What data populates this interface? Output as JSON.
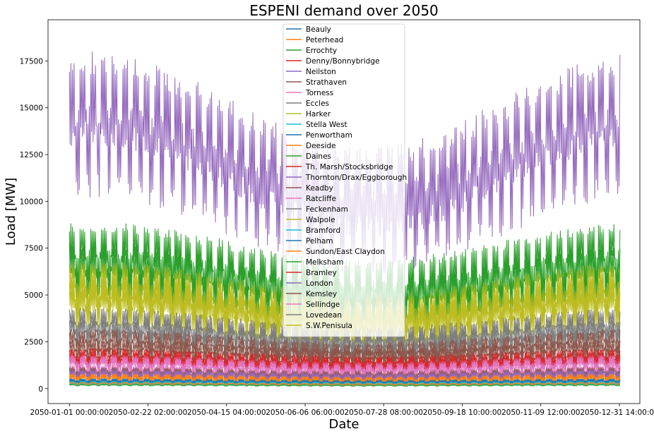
{
  "chart_data": {
    "type": "line",
    "title": "ESPENI demand over 2050",
    "xlabel": "Date",
    "ylabel": "Load [MW]",
    "x_ticks": [
      "2050-01-01 00:00:00",
      "2050-02-22 02:00:00",
      "2050-04-15 04:00:00",
      "2050-06-06 06:00:00",
      "2050-07-28 08:00:00",
      "2050-09-18 10:00:00",
      "2050-11-09 12:00:00",
      "2050-12-31 14:00:00"
    ],
    "xlim": [
      "2049-12-17 20:00:00",
      "2051-01-14 04:00:00"
    ],
    "data_range": [
      "2050-01-01 00:00:00",
      "2050-12-31 23:30:00"
    ],
    "y_ticks": [
      0,
      2500,
      5000,
      7500,
      10000,
      12500,
      15000,
      17500
    ],
    "ylim": [
      -800,
      19700
    ],
    "grid": false,
    "legend_placement": "top-center",
    "series": [
      {
        "name": "Beauly",
        "color": "#1f77b4",
        "winter": 480,
        "summer": 400,
        "spread": 60
      },
      {
        "name": "Peterhead",
        "color": "#ff7f0e",
        "winter": 300,
        "summer": 250,
        "spread": 40
      },
      {
        "name": "Errochty",
        "color": "#2ca02c",
        "winter": 200,
        "summer": 170,
        "spread": 30
      },
      {
        "name": "Denny/Bonnybridge",
        "color": "#d62728",
        "winter": 1900,
        "summer": 1500,
        "spread": 250
      },
      {
        "name": "Neilston",
        "color": "#9467bd",
        "winter": 15500,
        "summer": 10500,
        "spread": 2500
      },
      {
        "name": "Strathaven",
        "color": "#8c564b",
        "winter": 2800,
        "summer": 2100,
        "spread": 400
      },
      {
        "name": "Torness",
        "color": "#e377c2",
        "winter": 1600,
        "summer": 1200,
        "spread": 250
      },
      {
        "name": "Eccles",
        "color": "#7f7f7f",
        "winter": 3800,
        "summer": 2800,
        "spread": 500
      },
      {
        "name": "Harker",
        "color": "#bcbd22",
        "winter": 5900,
        "summer": 4200,
        "spread": 900
      },
      {
        "name": "Stella West",
        "color": "#17becf",
        "winter": 350,
        "summer": 300,
        "spread": 50
      },
      {
        "name": "Penwortham",
        "color": "#1f77b4",
        "winter": 420,
        "summer": 360,
        "spread": 60
      },
      {
        "name": "Deeside",
        "color": "#ff7f0e",
        "winter": 600,
        "summer": 480,
        "spread": 100
      },
      {
        "name": "Daines",
        "color": "#2ca02c",
        "winter": 7800,
        "summer": 5800,
        "spread": 1100
      },
      {
        "name": "Th. Marsh/Stocksbridge",
        "color": "#d62728",
        "winter": 1700,
        "summer": 1350,
        "spread": 220
      },
      {
        "name": "Thornton/Drax/Eggborough",
        "color": "#9467bd",
        "winter": 900,
        "summer": 700,
        "spread": 120
      },
      {
        "name": "Keadby",
        "color": "#8c564b",
        "winter": 1000,
        "summer": 800,
        "spread": 150
      },
      {
        "name": "Ratcliffe",
        "color": "#e377c2",
        "winter": 1400,
        "summer": 1050,
        "spread": 200
      },
      {
        "name": "Feckenham",
        "color": "#7f7f7f",
        "winter": 3300,
        "summer": 2500,
        "spread": 450
      },
      {
        "name": "Walpole",
        "color": "#bcbd22",
        "winter": 4800,
        "summer": 3500,
        "spread": 700
      },
      {
        "name": "Bramford",
        "color": "#17becf",
        "winter": 260,
        "summer": 220,
        "spread": 40
      },
      {
        "name": "Pelham",
        "color": "#1f77b4",
        "winter": 380,
        "summer": 320,
        "spread": 50
      },
      {
        "name": "Sundon/East Claydon",
        "color": "#ff7f0e",
        "winter": 700,
        "summer": 560,
        "spread": 100
      },
      {
        "name": "Melksham",
        "color": "#2ca02c",
        "winter": 6900,
        "summer": 5200,
        "spread": 1000
      },
      {
        "name": "Bramley",
        "color": "#d62728",
        "winter": 1500,
        "summer": 1200,
        "spread": 200
      },
      {
        "name": "London",
        "color": "#9467bd",
        "winter": 800,
        "summer": 650,
        "spread": 100
      },
      {
        "name": "Kemsley",
        "color": "#8c564b",
        "winter": 2300,
        "summer": 1800,
        "spread": 350
      },
      {
        "name": "Sellindge",
        "color": "#e377c2",
        "winter": 1100,
        "summer": 850,
        "spread": 180
      },
      {
        "name": "Lovedean",
        "color": "#7f7f7f",
        "winter": 250,
        "summer": 200,
        "spread": 40
      },
      {
        "name": "S.W.Penisula",
        "color": "#bcbd22",
        "winter": 5300,
        "summer": 3900,
        "spread": 800
      }
    ]
  }
}
